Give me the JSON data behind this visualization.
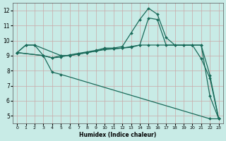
{
  "xlabel": "Humidex (Indice chaleur)",
  "bg_color": "#c8ebe6",
  "grid_color": "#c8a8a8",
  "line_color": "#1a6b5a",
  "xlim": [
    -0.5,
    23.5
  ],
  "ylim": [
    4.5,
    12.5
  ],
  "xticks": [
    0,
    1,
    2,
    3,
    4,
    5,
    6,
    7,
    8,
    9,
    10,
    11,
    12,
    13,
    14,
    15,
    16,
    17,
    18,
    19,
    20,
    21,
    22,
    23
  ],
  "yticks": [
    5,
    6,
    7,
    8,
    9,
    10,
    11,
    12
  ],
  "line1_x": [
    0,
    1,
    2,
    3,
    4,
    5,
    6,
    7,
    8,
    9,
    10,
    11,
    12,
    13,
    14,
    15,
    16,
    17,
    18,
    19,
    20,
    21,
    22,
    23
  ],
  "line1_y": [
    9.2,
    9.7,
    9.7,
    9.0,
    8.85,
    8.9,
    9.05,
    9.15,
    9.25,
    9.35,
    9.5,
    9.5,
    9.6,
    10.5,
    11.4,
    12.15,
    11.75,
    10.2,
    9.7,
    9.7,
    9.7,
    8.8,
    7.5,
    4.8
  ],
  "line2_x": [
    0,
    1,
    2,
    5,
    6,
    7,
    8,
    9,
    10,
    11,
    12,
    13,
    14,
    15,
    16,
    20,
    21,
    22,
    23
  ],
  "line2_y": [
    9.2,
    9.7,
    9.7,
    9.0,
    9.0,
    9.1,
    9.2,
    9.3,
    9.4,
    9.45,
    9.5,
    9.55,
    9.7,
    9.7,
    9.7,
    9.7,
    9.7,
    6.3,
    4.8
  ],
  "line3_x": [
    0,
    3,
    4,
    5,
    6,
    7,
    8,
    9,
    10,
    11,
    12,
    13,
    14,
    15,
    16,
    17,
    18,
    19,
    20,
    21,
    22,
    23
  ],
  "line3_y": [
    9.2,
    9.0,
    8.85,
    9.0,
    9.0,
    9.1,
    9.2,
    9.3,
    9.45,
    9.45,
    9.5,
    9.6,
    9.7,
    11.5,
    11.4,
    9.7,
    9.7,
    9.7,
    9.7,
    9.7,
    7.7,
    4.8
  ],
  "line4_x": [
    0,
    3,
    4,
    5,
    22,
    23
  ],
  "line4_y": [
    9.2,
    9.0,
    7.9,
    7.75,
    4.8,
    4.8
  ]
}
